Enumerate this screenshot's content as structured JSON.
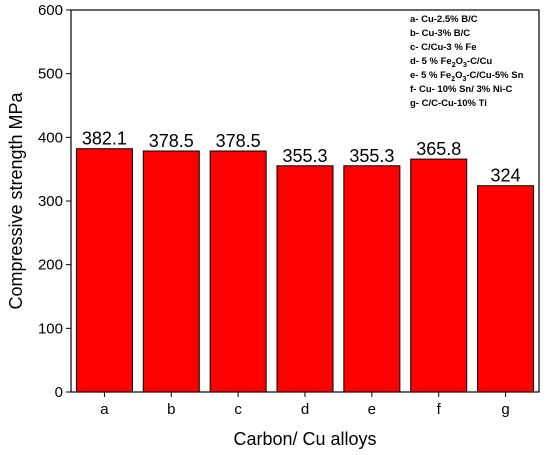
{
  "chart_data": {
    "type": "bar",
    "categories": [
      "a",
      "b",
      "c",
      "d",
      "e",
      "f",
      "g"
    ],
    "values": [
      382.1,
      378.5,
      378.5,
      355.3,
      355.3,
      365.8,
      324
    ],
    "data_labels": [
      "382.1",
      "378.5",
      "378.5",
      "355.3",
      "355.3",
      "365.8",
      "324"
    ],
    "xlabel": "Carbon/ Cu alloys",
    "ylabel": "Compressive strength MPa",
    "ylim": [
      0,
      600
    ],
    "yticks": [
      0,
      100,
      200,
      300,
      400,
      500,
      600
    ],
    "bar_color": "#ff0000",
    "bar_edge_color": "#000000",
    "grid": false,
    "legend_position": "top-right",
    "legend_entries": [
      {
        "prefix": "a- Cu-2.5% B/C"
      },
      {
        "prefix": "b- Cu-3% B/C"
      },
      {
        "prefix": "c- C/Cu-3 % Fe"
      },
      {
        "prefix": "d- 5 % Fe",
        "sub1": "2",
        "mid": "O",
        "sub2": "3",
        "suffix": "-C/Cu"
      },
      {
        "prefix": "e-  5 % Fe",
        "sub1": "2",
        "mid": "O",
        "sub2": "3",
        "suffix": "-C/Cu-5% Sn"
      },
      {
        "prefix": "f- Cu- 10% Sn/ 3% Ni-C"
      },
      {
        "prefix": "g- C/C-Cu-10% Ti"
      }
    ]
  }
}
